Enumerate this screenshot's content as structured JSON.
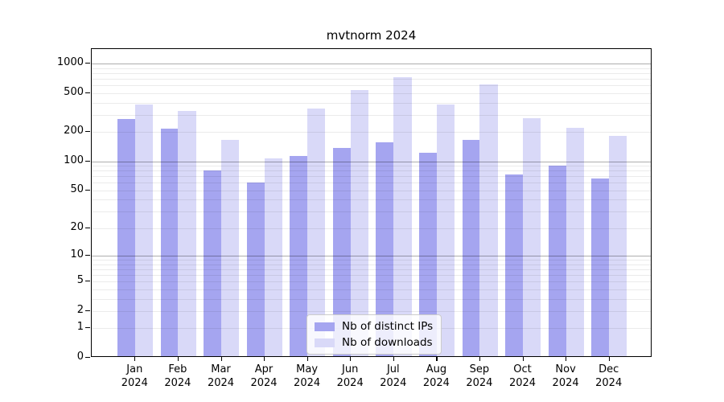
{
  "chart_data": {
    "type": "bar",
    "title": "mvtnorm 2024",
    "categories": [
      "Jan 2024",
      "Feb 2024",
      "Mar 2024",
      "Apr 2024",
      "May 2024",
      "Jun 2024",
      "Jul 2024",
      "Aug 2024",
      "Sep 2024",
      "Oct 2024",
      "Nov 2024",
      "Dec 2024"
    ],
    "x_tick_month": [
      "Jan",
      "Feb",
      "Mar",
      "Apr",
      "May",
      "Jun",
      "Jul",
      "Aug",
      "Sep",
      "Oct",
      "Nov",
      "Dec"
    ],
    "x_tick_year": "2024",
    "series": [
      {
        "name": "Nb of distinct IPs",
        "color": "#a5a5f0",
        "values": [
          260,
          207,
          78,
          58,
          109,
          133,
          150,
          117,
          161,
          70,
          86,
          64
        ]
      },
      {
        "name": "Nb of downloads",
        "color": "#d9d9f8",
        "values": [
          370,
          313,
          160,
          104,
          335,
          515,
          705,
          370,
          595,
          265,
          212,
          175
        ]
      }
    ],
    "y_axis": {
      "scale": "log1p",
      "ticks": [
        0,
        1,
        2,
        5,
        10,
        20,
        50,
        100,
        200,
        500,
        1000
      ],
      "ylim": [
        0,
        1000
      ],
      "major_gridlines": [
        10,
        100,
        1000
      ],
      "grid": true
    },
    "legend": {
      "position": "lower-center",
      "items": [
        "Nb of distinct IPs",
        "Nb of downloads"
      ]
    }
  },
  "colors": {
    "bar_dark": "#a5a5f0",
    "bar_light": "#d9d9f8",
    "grid_minor": "rgba(0,0,0,0.08)",
    "grid_major": "rgba(0,0,0,0.32)",
    "axis": "#000000",
    "legend_border": "#cccccc",
    "legend_bg": "rgba(255,255,255,0.8)"
  }
}
